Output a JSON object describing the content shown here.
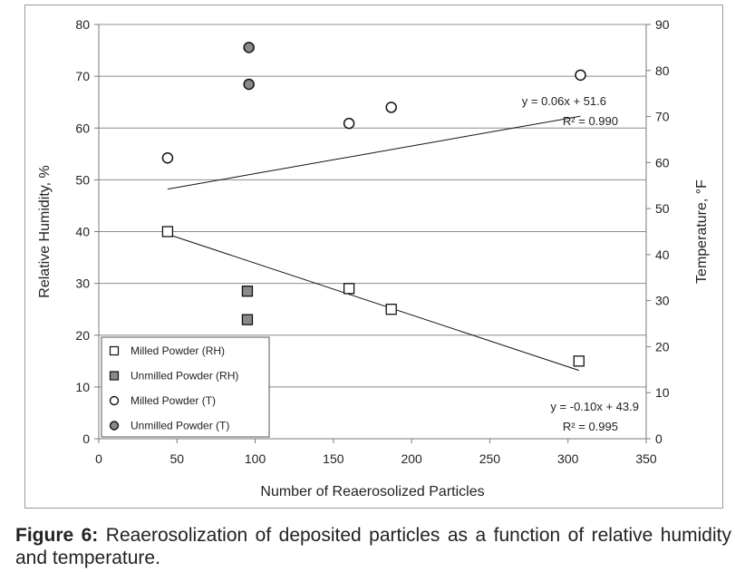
{
  "chart_data": {
    "type": "scatter",
    "xlabel": "Number of Reaerosolized Particles",
    "ylabel": "Relative Humidity, %",
    "y2label": "Temperature, °F",
    "xlim": [
      0,
      350
    ],
    "ylim": [
      0,
      80
    ],
    "y2lim": [
      0,
      90
    ],
    "xticks": [
      0,
      50,
      100,
      150,
      200,
      250,
      300,
      350
    ],
    "yticks": [
      0,
      10,
      20,
      30,
      40,
      50,
      60,
      70,
      80
    ],
    "y2ticks": [
      0,
      10,
      20,
      30,
      40,
      50,
      60,
      70,
      80,
      90
    ],
    "grid": "horizontal",
    "legend_position": "bottom-left",
    "series": [
      {
        "name": "Milled Powder (RH)",
        "marker": "square-open",
        "axis": "left",
        "x": [
          44,
          160,
          187,
          307
        ],
        "y": [
          40,
          29,
          25,
          15
        ]
      },
      {
        "name": "Unmilled Powder (RH)",
        "marker": "square-filled",
        "axis": "left",
        "x": [
          95,
          95
        ],
        "y": [
          28.5,
          23
        ]
      },
      {
        "name": "Milled Powder (T)",
        "marker": "circle-open",
        "axis": "right",
        "x": [
          44,
          160,
          187,
          308
        ],
        "y": [
          61,
          68.5,
          72,
          79
        ]
      },
      {
        "name": "Unmilled Powder (T)",
        "marker": "circle-filled",
        "axis": "right",
        "x": [
          96,
          96
        ],
        "y": [
          85,
          77
        ]
      }
    ],
    "trendlines": [
      {
        "series": "Milled Powder (T)",
        "axis": "right",
        "slope": 0.06,
        "intercept": 51.6,
        "x_range": [
          44,
          308
        ],
        "equation": "y = 0.06x + 51.6",
        "r2_label": "R² = 0.990"
      },
      {
        "series": "Milled Powder (RH)",
        "axis": "left",
        "slope": -0.1,
        "intercept": 43.9,
        "x_range": [
          44,
          307
        ],
        "equation": "y = -0.10x + 43.9",
        "r2_label": "R² = 0.995"
      }
    ]
  },
  "colors": {
    "grid": "#8c8c8c",
    "axis": "#7a7a7a",
    "marker_edge": "#111111",
    "marker_fill_open": "#ffffff",
    "marker_fill_filled": "#8a8a8a",
    "trendline": "#111111"
  },
  "caption": {
    "label": "Figure 6:",
    "text": "Reaerosolization of deposited particles as a function of relative humidity and temperature."
  }
}
